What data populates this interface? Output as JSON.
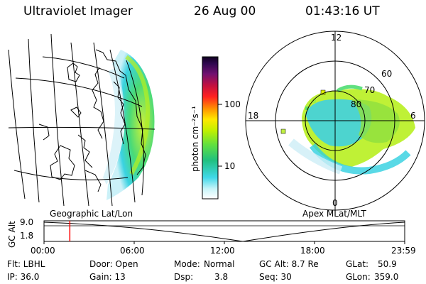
{
  "header": {
    "instrument": "Ultraviolet Imager",
    "date": "26 Aug 00",
    "time": "01:43:16 UT"
  },
  "left_panel": {
    "label": "Geographic Lat/Lon"
  },
  "right_panel": {
    "label": "Apex MLat/MLT",
    "mlt_labels": {
      "top": "12",
      "left": "18",
      "right": "6",
      "bottom": "0"
    },
    "lat_labels": [
      "60",
      "70",
      "80"
    ]
  },
  "colorbar": {
    "unit_label": "photon cm⁻²s⁻¹",
    "ticks": [
      "100",
      "10"
    ],
    "scale": "log"
  },
  "timeline": {
    "axis_label": "GC Alt",
    "y_ticks": [
      "9.0",
      "1.8"
    ],
    "x_ticks": [
      "00:00",
      "06:00",
      "12:00",
      "18:00",
      "23:59"
    ],
    "marker_time": "01:43"
  },
  "info": {
    "filter": "Flt: LBHL",
    "ip": "IP: 36.0",
    "door": "Door: Open",
    "gain": "Gain: 13",
    "mode_label": "Mode:",
    "mode_value": "Normal",
    "dsp_label": "Dsp:",
    "dsp_value": "3.8",
    "gc_alt": "GC Alt: 8.7 Re",
    "seq": "Seq: 30",
    "glat_label": "GLat:",
    "glat_value": "50.9",
    "glon_label": "GLon:",
    "glon_value": "359.0"
  },
  "colors": {
    "marker": "#ff0000",
    "aurora_bright": "#b8f020",
    "aurora_green": "#20d060",
    "aurora_cyan": "#30d8e0"
  }
}
